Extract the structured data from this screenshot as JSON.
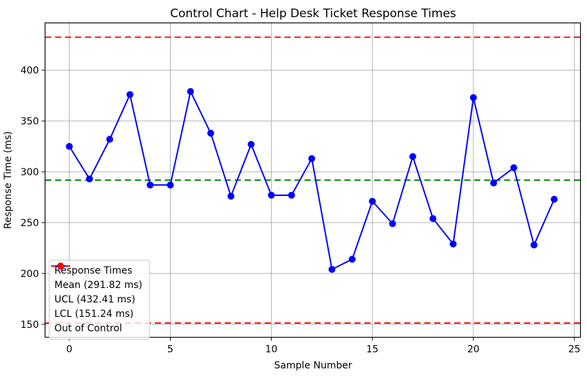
{
  "colors": {
    "series": "#0000ff",
    "mean_line": "#008000",
    "control_limit": "#ff0000",
    "grid": "#b0b0b0",
    "spine": "#000000",
    "text": "#000000",
    "legend_border": "#cccccc",
    "background": "#ffffff"
  },
  "chart_data": {
    "type": "line",
    "title": "Control Chart - Help Desk Ticket Response Times",
    "xlabel": "Sample Number",
    "ylabel": "Response Time (ms)",
    "x": [
      0,
      1,
      2,
      3,
      4,
      5,
      6,
      7,
      8,
      9,
      10,
      11,
      12,
      13,
      14,
      15,
      16,
      17,
      18,
      19,
      20,
      21,
      22,
      23,
      24
    ],
    "series": [
      {
        "name": "Response Times",
        "color": "#0000ff",
        "line_style": "solid",
        "marker": "circle",
        "values": [
          325,
          293,
          332,
          376,
          287,
          287,
          379,
          338,
          276,
          327,
          277,
          277,
          313,
          204,
          214,
          271,
          249,
          315,
          254,
          229,
          373,
          289,
          304,
          228,
          273
        ]
      }
    ],
    "reference_lines": [
      {
        "name": "Mean (291.82 ms)",
        "value": 291.82,
        "color": "#008000",
        "style": "dashed"
      },
      {
        "name": "UCL (432.41 ms)",
        "value": 432.41,
        "color": "#ff0000",
        "style": "dashed"
      },
      {
        "name": "LCL (151.24 ms)",
        "value": 151.24,
        "color": "#ff0000",
        "style": "dashed"
      }
    ],
    "out_of_control": {
      "label": "Out of Control",
      "color": "#ff0000",
      "points": []
    },
    "xlim": [
      -1.2,
      25.3
    ],
    "ylim": [
      137.2,
      446.5
    ],
    "xticks": [
      0,
      5,
      10,
      15,
      20,
      25
    ],
    "yticks": [
      150,
      200,
      250,
      300,
      350,
      400
    ],
    "grid": true,
    "legend_position": "lower left"
  },
  "legend": {
    "items": [
      {
        "label": "Response Times",
        "color": "#0000ff",
        "style": "line-marker"
      },
      {
        "label": "Mean (291.82 ms)",
        "color": "#008000",
        "style": "dashed"
      },
      {
        "label": "UCL (432.41 ms)",
        "color": "#ff0000",
        "style": "dashed"
      },
      {
        "label": "LCL (151.24 ms)",
        "color": "#ff0000",
        "style": "dashed"
      },
      {
        "label": "Out of Control",
        "color": "#ff0000",
        "style": "marker"
      }
    ]
  }
}
